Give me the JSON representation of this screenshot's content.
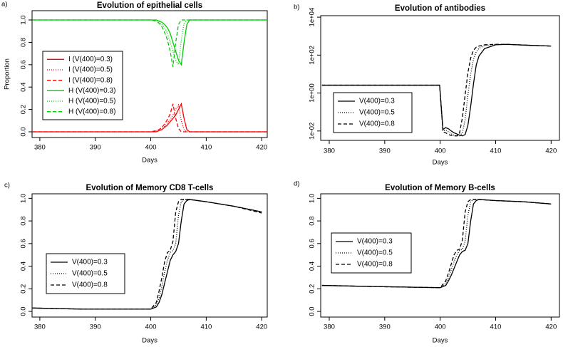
{
  "chart_data": [
    {
      "type": "line",
      "panel_label": "a)",
      "title": "Evolution of epithelial cells",
      "xlabel": "Days",
      "ylabel": "Proportion",
      "x": [
        378.7,
        400,
        401,
        401.5,
        402,
        402.5,
        403,
        403.5,
        404,
        404.5,
        405,
        405.5,
        406,
        406.5,
        407,
        408,
        421
      ],
      "xlim": [
        378.6,
        421
      ],
      "xticks": [
        380,
        390,
        400,
        410,
        420
      ],
      "ylim": [
        -0.051,
        1.083
      ],
      "yticks": [
        {
          "value": 0,
          "label": "0.0"
        },
        0.2,
        0.4,
        0.6,
        0.8,
        {
          "value": 1,
          "label": "1.0"
        }
      ],
      "series": [
        {
          "name": "I (V(400)=0.3)",
          "color": "#ff0000",
          "dash": "solid",
          "values": [
            0,
            0,
            0,
            0.01,
            0.02,
            0.04,
            0.06,
            0.09,
            0.12,
            0.15,
            0.2,
            0.25,
            0.12,
            0.02,
            0,
            0,
            0
          ]
        },
        {
          "name": "I (V(400)=0.5)",
          "color": "#ff0000",
          "dash": "dotted",
          "values": [
            0,
            0,
            0.01,
            0.02,
            0.03,
            0.05,
            0.08,
            0.11,
            0.15,
            0.2,
            0.24,
            0.1,
            0.02,
            0,
            0,
            0,
            0
          ]
        },
        {
          "name": "I (V(400)=0.8)",
          "color": "#ff0000",
          "dash": "dashed",
          "values": [
            0,
            0,
            0.01,
            0.02,
            0.04,
            0.07,
            0.11,
            0.16,
            0.25,
            0.12,
            0.03,
            0,
            0,
            0,
            0,
            0,
            0
          ]
        },
        {
          "name": "H (V(400)=0.3)",
          "color": "#00cc00",
          "dash": "solid",
          "values": [
            1,
            1,
            1,
            0.99,
            0.98,
            0.96,
            0.93,
            0.88,
            0.8,
            0.72,
            0.64,
            0.6,
            0.8,
            0.96,
            1,
            1,
            1
          ]
        },
        {
          "name": "H (V(400)=0.5)",
          "color": "#00cc00",
          "dash": "dotted",
          "values": [
            1,
            1,
            0.99,
            0.98,
            0.96,
            0.93,
            0.88,
            0.8,
            0.72,
            0.64,
            0.6,
            0.82,
            0.97,
            1,
            1,
            1,
            1
          ]
        },
        {
          "name": "H (V(400)=0.8)",
          "color": "#00cc00",
          "dash": "dashed",
          "values": [
            1,
            1,
            0.99,
            0.97,
            0.94,
            0.89,
            0.82,
            0.72,
            0.58,
            0.8,
            0.96,
            1,
            1,
            1,
            1,
            1,
            1
          ]
        }
      ]
    },
    {
      "type": "line",
      "panel_label": "b)",
      "title": "Evolution of antibodies",
      "xlabel": "Days",
      "log_y": true,
      "x": [
        378.7,
        399.9,
        400.5,
        401,
        401.5,
        402,
        402.5,
        403,
        403.5,
        404,
        404.5,
        405,
        405.5,
        406,
        406.5,
        407,
        408,
        410,
        412,
        416,
        420
      ],
      "xlim": [
        378.46,
        421.5
      ],
      "xticks": [
        380,
        390,
        400,
        410,
        420
      ],
      "ylim": [
        0.0032,
        12000
      ],
      "yticks": [
        {
          "value": 0.01,
          "label": "1e-02"
        },
        {
          "value": 1,
          "label": "1e+00"
        },
        {
          "value": 100,
          "label": "1e+02"
        },
        {
          "value": 10000,
          "label": "1e+04"
        }
      ],
      "series": [
        {
          "name": "V(400)=0.3",
          "color": "#000000",
          "dash": "solid",
          "values": [
            2.6,
            2.6,
            0.012,
            0.015,
            0.013,
            0.01,
            0.008,
            0.007,
            0.006,
            0.0055,
            0.0065,
            0.02,
            0.2,
            3,
            30,
            90,
            220,
            350,
            370,
            330,
            300
          ]
        },
        {
          "name": "V(400)=0.5",
          "color": "#000000",
          "dash": "dotted",
          "values": [
            2.6,
            2.6,
            0.01,
            0.011,
            0.009,
            0.007,
            0.006,
            0.0056,
            0.0055,
            0.008,
            0.04,
            0.8,
            10,
            60,
            150,
            230,
            320,
            370,
            370,
            330,
            300
          ]
        },
        {
          "name": "V(400)=0.8",
          "color": "#000000",
          "dash": "dashed",
          "values": [
            2.6,
            2.6,
            0.009,
            0.008,
            0.0065,
            0.0058,
            0.0055,
            0.0055,
            0.008,
            0.05,
            0.8,
            12,
            70,
            180,
            260,
            300,
            350,
            370,
            370,
            330,
            300
          ]
        }
      ]
    },
    {
      "type": "line",
      "panel_label": "c)",
      "title": "Evolution of Memory CD8 T-cells",
      "xlabel": "Days",
      "x": [
        378.7,
        388,
        400,
        401,
        401.5,
        402,
        402.5,
        403,
        403.5,
        404,
        404.5,
        405,
        405.5,
        406,
        406.5,
        407,
        410,
        415,
        420
      ],
      "xlim": [
        378.6,
        421
      ],
      "xticks": [
        380,
        390,
        400,
        410,
        420
      ],
      "ylim": [
        -0.05,
        1.04
      ],
      "yticks": [
        {
          "value": 0,
          "label": "0.0"
        },
        0.2,
        0.4,
        0.6,
        0.8,
        {
          "value": 1,
          "label": "1.0"
        }
      ],
      "series": [
        {
          "name": "V(400)=0.3",
          "color": "#000000",
          "dash": "solid",
          "values": [
            0.03,
            0.02,
            0.02,
            0.04,
            0.08,
            0.15,
            0.25,
            0.35,
            0.45,
            0.5,
            0.53,
            0.6,
            0.8,
            0.95,
            0.98,
            0.99,
            0.97,
            0.93,
            0.88
          ]
        },
        {
          "name": "V(400)=0.5",
          "color": "#000000",
          "dash": "dotted",
          "values": [
            0.03,
            0.02,
            0.02,
            0.06,
            0.12,
            0.22,
            0.35,
            0.45,
            0.52,
            0.54,
            0.6,
            0.85,
            0.97,
            0.99,
            0.99,
            0.99,
            0.97,
            0.93,
            0.88
          ]
        },
        {
          "name": "V(400)=0.8",
          "color": "#000000",
          "dash": "dashed",
          "values": [
            0.03,
            0.02,
            0.02,
            0.08,
            0.18,
            0.3,
            0.44,
            0.52,
            0.54,
            0.62,
            0.88,
            0.97,
            0.99,
            0.99,
            0.99,
            0.99,
            0.97,
            0.93,
            0.87
          ]
        }
      ]
    },
    {
      "type": "line",
      "panel_label": "d)",
      "title": "Evolution of Memory B-cells",
      "xlabel": "Days",
      "x": [
        378.7,
        388,
        400,
        401,
        401.5,
        402,
        402.5,
        403,
        403.5,
        404,
        404.5,
        405,
        405.5,
        406,
        406.5,
        407,
        410,
        415,
        420
      ],
      "xlim": [
        378.46,
        421.5
      ],
      "xticks": [
        380,
        390,
        400,
        410,
        420
      ],
      "ylim": [
        -0.05,
        1.04
      ],
      "yticks": [
        {
          "value": 0,
          "label": "0.0"
        },
        0.2,
        0.4,
        0.6,
        0.8,
        {
          "value": 1,
          "label": "1.0"
        }
      ],
      "series": [
        {
          "name": "V(400)=0.3",
          "color": "#000000",
          "dash": "solid",
          "values": [
            0.23,
            0.22,
            0.21,
            0.23,
            0.27,
            0.32,
            0.38,
            0.44,
            0.5,
            0.53,
            0.54,
            0.6,
            0.8,
            0.95,
            0.98,
            0.99,
            0.98,
            0.97,
            0.95
          ]
        },
        {
          "name": "V(400)=0.5",
          "color": "#000000",
          "dash": "dotted",
          "values": [
            0.23,
            0.22,
            0.21,
            0.25,
            0.3,
            0.37,
            0.44,
            0.5,
            0.54,
            0.55,
            0.62,
            0.85,
            0.97,
            0.99,
            0.99,
            0.99,
            0.98,
            0.97,
            0.95
          ]
        },
        {
          "name": "V(400)=0.8",
          "color": "#000000",
          "dash": "dashed",
          "values": [
            0.23,
            0.22,
            0.21,
            0.27,
            0.34,
            0.42,
            0.5,
            0.54,
            0.55,
            0.63,
            0.88,
            0.97,
            0.99,
            0.99,
            0.99,
            0.99,
            0.98,
            0.97,
            0.95
          ]
        }
      ]
    }
  ]
}
